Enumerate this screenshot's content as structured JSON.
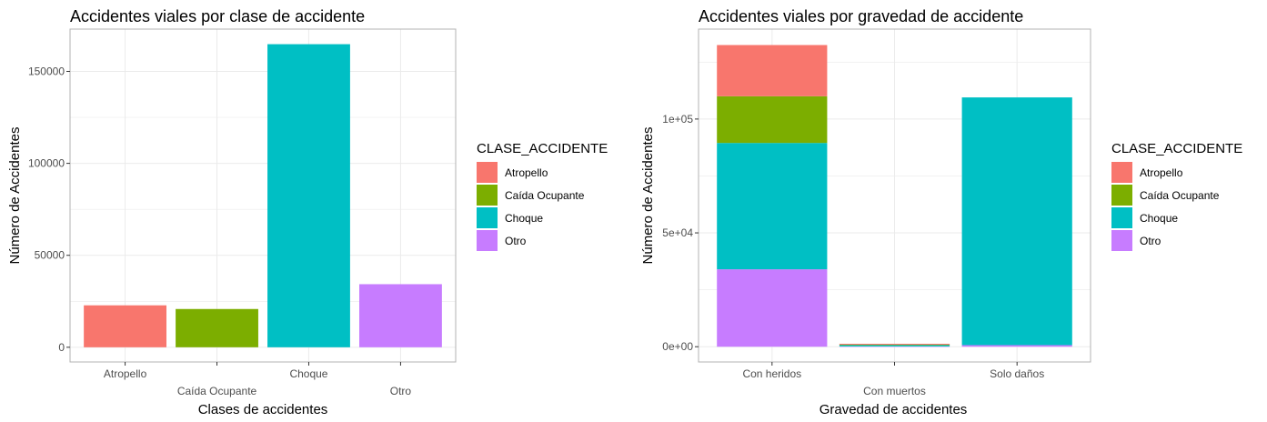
{
  "chart_data": [
    {
      "type": "bar",
      "title": "Accidentes viales por clase de accidente",
      "xlabel": "Clases de accidentes",
      "ylabel": "Número de Accidentes",
      "categories": [
        "Atropello",
        "Caída Ocupante",
        "Choque",
        "Otro"
      ],
      "values": [
        22800,
        20800,
        164800,
        34300
      ],
      "colors": [
        "#F8766D",
        "#7CAE00",
        "#00BFC4",
        "#C77CFF"
      ],
      "ylim": [
        -8000,
        173000
      ],
      "yticks": [
        0,
        50000,
        100000,
        150000
      ],
      "ytick_labels": [
        "0",
        "50000",
        "100000",
        "150000"
      ],
      "grid": true,
      "legend": {
        "title": "CLASE_ACCIDENTE",
        "position": "right",
        "items": [
          "Atropello",
          "Caída Ocupante",
          "Choque",
          "Otro"
        ]
      }
    },
    {
      "type": "bar",
      "stacked": true,
      "title": "Accidentes viales por gravedad de accidente",
      "xlabel": "Gravedad de accidentes",
      "ylabel": "Número de Accidentes",
      "categories": [
        "Con heridos",
        "Con muertos",
        "Solo daños"
      ],
      "series": [
        {
          "name": "Otro",
          "values": [
            34000,
            150,
            700
          ]
        },
        {
          "name": "Choque",
          "values": [
            55500,
            700,
            108800
          ]
        },
        {
          "name": "Caída Ocupante",
          "values": [
            20500,
            50,
            0
          ]
        },
        {
          "name": "Atropello",
          "values": [
            22500,
            400,
            0
          ]
        }
      ],
      "series_colors": {
        "Atropello": "#F8766D",
        "Caída Ocupante": "#7CAE00",
        "Choque": "#00BFC4",
        "Otro": "#C77CFF"
      },
      "ylim": [
        -6700,
        139500
      ],
      "yticks": [
        0,
        50000,
        100000
      ],
      "ytick_labels": [
        "0e+00",
        "5e+04",
        "1e+05"
      ],
      "grid": true,
      "legend": {
        "title": "CLASE_ACCIDENTE",
        "position": "right",
        "items": [
          "Atropello",
          "Caída Ocupante",
          "Choque",
          "Otro"
        ]
      }
    }
  ]
}
